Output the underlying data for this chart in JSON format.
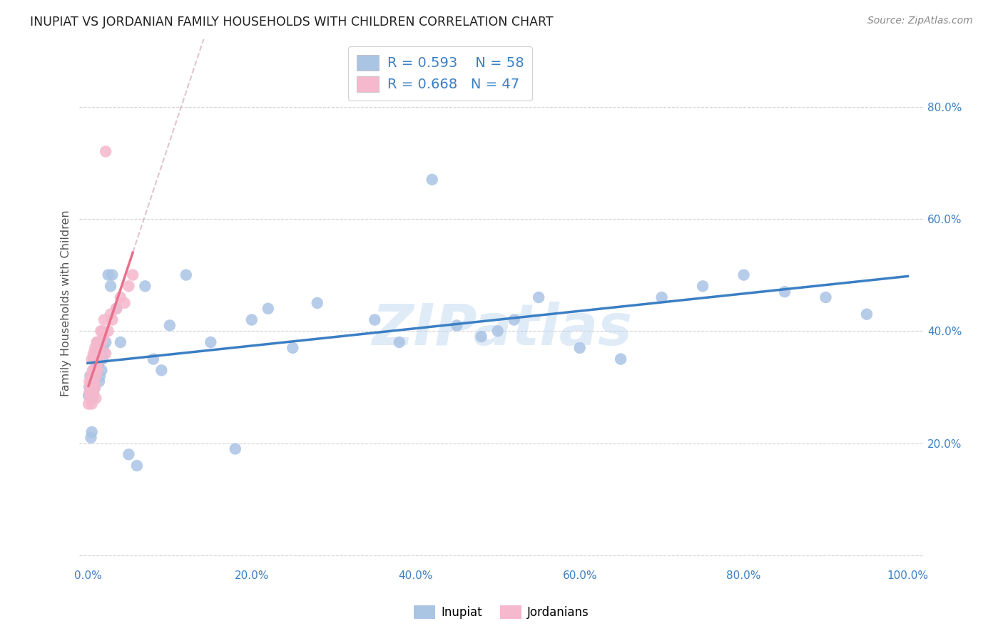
{
  "title": "INUPIAT VS JORDANIAN FAMILY HOUSEHOLDS WITH CHILDREN CORRELATION CHART",
  "source": "Source: ZipAtlas.com",
  "ylabel": "Family Households with Children",
  "watermark": "ZIPatlas",
  "inupiat_color": "#aac4e4",
  "jordanian_color": "#f5b8cc",
  "inupiat_line_color": "#3b7fc4",
  "jordanian_line_color": "#e8708c",
  "jordanian_dash_color": "#d4b0be",
  "grid_color": "#d0d0d8",
  "tick_color": "#3b7fc4",
  "title_color": "#222222",
  "source_color": "#888888",
  "watermark_color": "#c0d8f0",
  "ylabel_color": "#555555",
  "inupiat_R": 0.593,
  "inupiat_N": 58,
  "jordanian_R": 0.668,
  "jordanian_N": 47,
  "inupiat_x": [
    0.001,
    0.002,
    0.003,
    0.004,
    0.005,
    0.005,
    0.006,
    0.007,
    0.007,
    0.008,
    0.009,
    0.01,
    0.01,
    0.011,
    0.012,
    0.013,
    0.014,
    0.015,
    0.016,
    0.017,
    0.018,
    0.019,
    0.02,
    0.022,
    0.025,
    0.028,
    0.03,
    0.035,
    0.04,
    0.05,
    0.06,
    0.07,
    0.08,
    0.09,
    0.1,
    0.12,
    0.15,
    0.18,
    0.2,
    0.22,
    0.25,
    0.28,
    0.35,
    0.38,
    0.42,
    0.45,
    0.48,
    0.5,
    0.52,
    0.55,
    0.6,
    0.65,
    0.7,
    0.75,
    0.8,
    0.85,
    0.9,
    0.95
  ],
  "inupiat_y": [
    0.285,
    0.3,
    0.32,
    0.21,
    0.22,
    0.28,
    0.31,
    0.35,
    0.29,
    0.33,
    0.3,
    0.32,
    0.36,
    0.35,
    0.38,
    0.34,
    0.31,
    0.32,
    0.36,
    0.33,
    0.35,
    0.37,
    0.36,
    0.38,
    0.5,
    0.48,
    0.5,
    0.44,
    0.38,
    0.18,
    0.16,
    0.48,
    0.35,
    0.33,
    0.41,
    0.5,
    0.38,
    0.19,
    0.42,
    0.44,
    0.37,
    0.45,
    0.42,
    0.38,
    0.67,
    0.41,
    0.39,
    0.4,
    0.42,
    0.46,
    0.37,
    0.35,
    0.46,
    0.48,
    0.5,
    0.47,
    0.46,
    0.43
  ],
  "jordanian_x": [
    0.001,
    0.002,
    0.002,
    0.003,
    0.003,
    0.004,
    0.004,
    0.005,
    0.005,
    0.005,
    0.006,
    0.006,
    0.006,
    0.007,
    0.007,
    0.007,
    0.008,
    0.008,
    0.009,
    0.009,
    0.009,
    0.01,
    0.01,
    0.01,
    0.011,
    0.011,
    0.012,
    0.012,
    0.013,
    0.013,
    0.014,
    0.015,
    0.016,
    0.017,
    0.018,
    0.019,
    0.02,
    0.022,
    0.025,
    0.028,
    0.03,
    0.035,
    0.04,
    0.045,
    0.05,
    0.055,
    0.022
  ],
  "jordanian_y": [
    0.27,
    0.29,
    0.31,
    0.3,
    0.28,
    0.32,
    0.29,
    0.35,
    0.31,
    0.27,
    0.33,
    0.3,
    0.28,
    0.36,
    0.32,
    0.29,
    0.35,
    0.31,
    0.37,
    0.33,
    0.3,
    0.36,
    0.32,
    0.28,
    0.38,
    0.34,
    0.37,
    0.33,
    0.38,
    0.35,
    0.36,
    0.38,
    0.4,
    0.38,
    0.4,
    0.39,
    0.42,
    0.36,
    0.4,
    0.43,
    0.42,
    0.44,
    0.46,
    0.45,
    0.48,
    0.5,
    0.72
  ],
  "xtick_vals": [
    0.0,
    0.2,
    0.4,
    0.6,
    0.8,
    1.0
  ],
  "xtick_labels": [
    "0.0%",
    "20.0%",
    "40.0%",
    "60.0%",
    "80.0%",
    "100.0%"
  ],
  "ytick_vals": [
    0.0,
    0.2,
    0.4,
    0.6,
    0.8
  ],
  "ytick_labels": [
    "",
    "20.0%",
    "40.0%",
    "60.0%",
    "80.0%"
  ]
}
